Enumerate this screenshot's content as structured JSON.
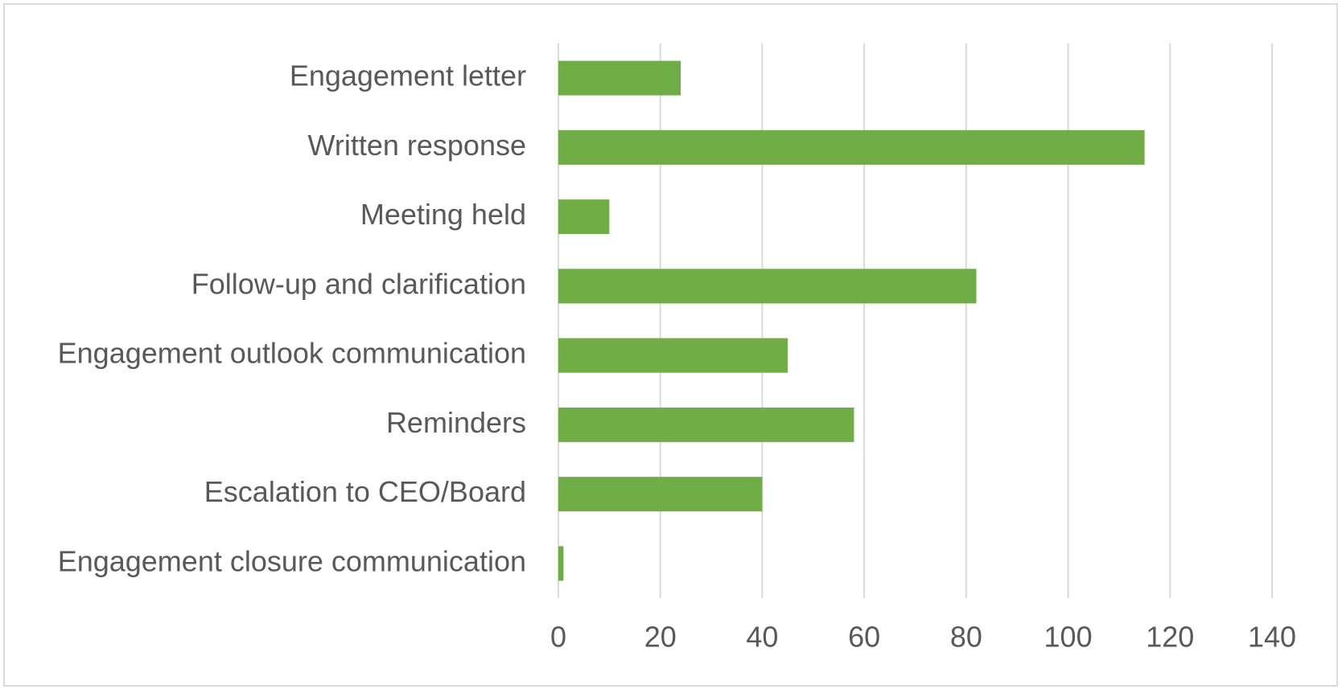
{
  "chart_data": {
    "type": "bar",
    "orientation": "horizontal",
    "categories": [
      "Engagement letter",
      "Written response",
      "Meeting held",
      "Follow-up and clarification",
      "Engagement outlook communication",
      "Reminders",
      "Escalation to CEO/Board",
      "Engagement closure communication"
    ],
    "values": [
      24,
      115,
      10,
      82,
      45,
      58,
      40,
      1
    ],
    "color": "#70ad47",
    "xlim": [
      0,
      140
    ],
    "xticks": [
      0,
      20,
      40,
      60,
      80,
      100,
      120,
      140
    ],
    "grid": true
  }
}
